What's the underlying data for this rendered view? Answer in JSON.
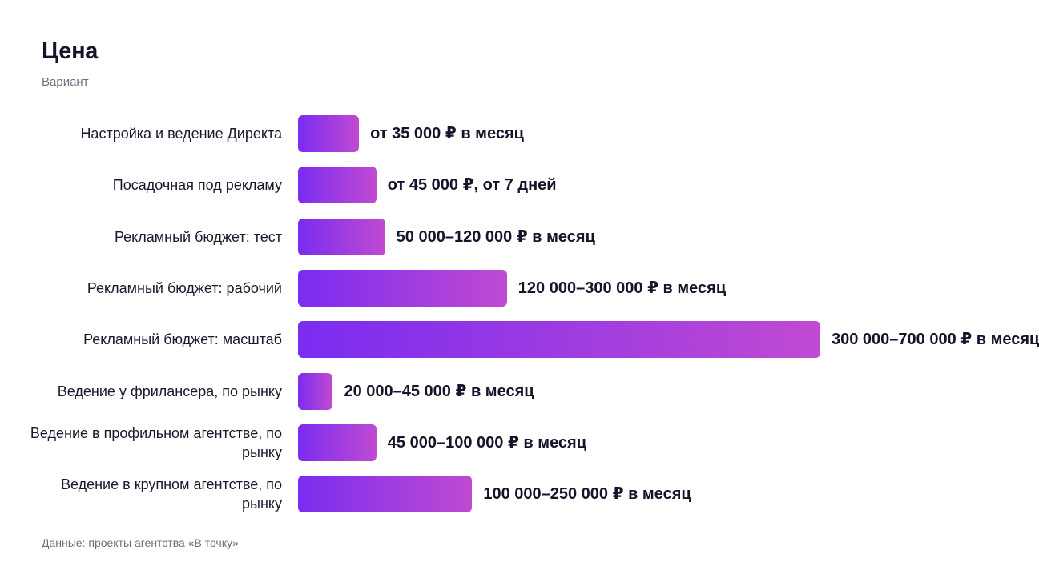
{
  "header": {
    "title": "Цена",
    "subtitle": "Вариант"
  },
  "footer": {
    "source": "Данные: проекты агентства «В точку»"
  },
  "colors": {
    "bar_gradient_start": "#7a2cf0",
    "bar_gradient_end": "#c04ad2",
    "text": "#14142b",
    "muted": "#6e6e80"
  },
  "chart_data": {
    "type": "bar",
    "orientation": "horizontal",
    "categories": [
      "Настройка и ведение Директа",
      "Посадочная под рекламу",
      "Рекламный бюджет: тест",
      "Рекламный бюджет: рабочий",
      "Рекламный бюджет: масштаб",
      "Ведение у фрилансера, по рынку",
      "Ведение в профильном агентстве, по рынку",
      "Ведение в крупном агентстве, по рынку"
    ],
    "values": [
      35000,
      45000,
      50000,
      120000,
      300000,
      20000,
      45000,
      100000
    ],
    "value_labels": [
      "от 35 000 ₽ в месяц",
      "от 45 000 ₽, от 7 дней",
      "50 000–120 000 ₽ в месяц",
      "120 000–300 000 ₽ в месяц",
      "300 000–700 000 ₽ в месяц",
      "20 000–45 000 ₽ в месяц",
      "45 000–100 000 ₽ в месяц",
      "100 000–250 000 ₽ в месяц"
    ],
    "xlim": [
      0,
      300000
    ],
    "grid": false,
    "legend": "none"
  }
}
